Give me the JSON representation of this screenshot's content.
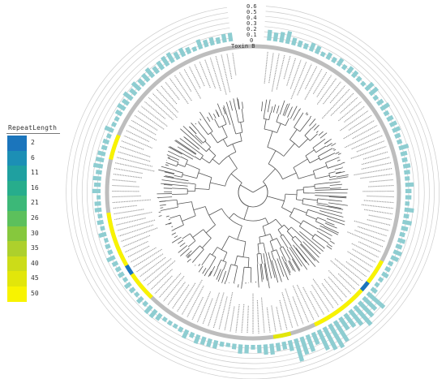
{
  "scale": {
    "ticks": [
      "0.6",
      "0.5",
      "0.4",
      "0.3",
      "0.2",
      "0.1",
      "0"
    ],
    "label": "Toxin B"
  },
  "legend": {
    "title": "RepeatLength",
    "items": [
      {
        "label": "2",
        "color": "#1b75bc"
      },
      {
        "label": "6",
        "color": "#1c8fb5"
      },
      {
        "label": "11",
        "color": "#1fa0a0"
      },
      {
        "label": "16",
        "color": "#27ad8c"
      },
      {
        "label": "21",
        "color": "#3cb878"
      },
      {
        "label": "26",
        "color": "#5cc05c"
      },
      {
        "label": "30",
        "color": "#86c83d"
      },
      {
        "label": "35",
        "color": "#add02c"
      },
      {
        "label": "40",
        "color": "#ccdc18"
      },
      {
        "label": "45",
        "color": "#e2e60a"
      },
      {
        "label": "50",
        "color": "#f8f300"
      }
    ]
  },
  "colors": {
    "bar": "#8ecdd1",
    "bar_edge": "#6fb8bd",
    "ring": "#cccccc",
    "ring_band": "#bdbdbd"
  }
}
